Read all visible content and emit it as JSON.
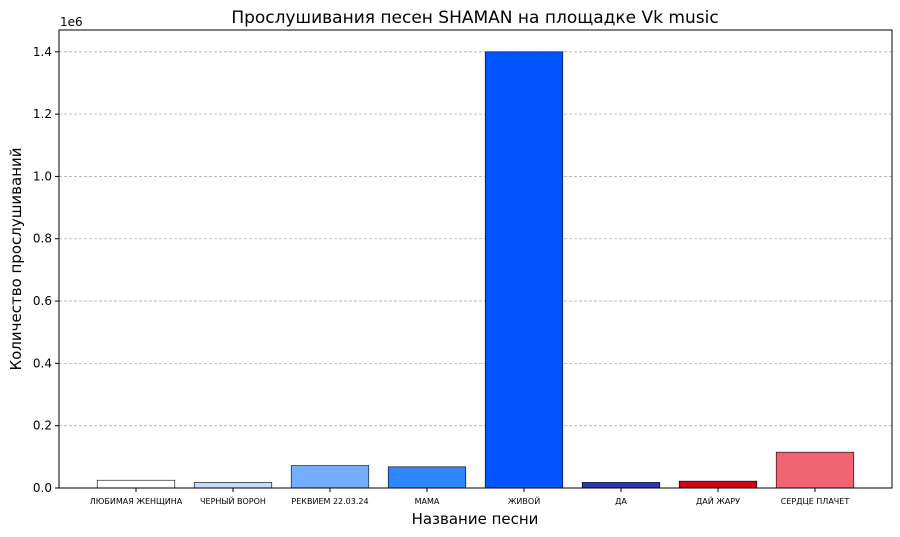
{
  "chart_data": {
    "type": "bar",
    "title": "Прослушивания песен SHAMAN на площадке Vk music",
    "xlabel": "Название песни",
    "ylabel": "Количество прослушиваний",
    "y_offset_label": "1e6",
    "ylim": [
      0,
      1470000
    ],
    "yticks": [
      0,
      200000,
      400000,
      600000,
      800000,
      1000000,
      1200000,
      1400000
    ],
    "ytick_labels": [
      "0.0",
      "0.2",
      "0.4",
      "0.6",
      "0.8",
      "1.0",
      "1.2",
      "1.4"
    ],
    "grid": true,
    "categories": [
      "ЛЮБИМАЯ ЖЕНЩИНА",
      "ЧЕРНЫЙ ВОРОН",
      "РЕКВИЕМ 22.03.24",
      "МАМА",
      "ЖИВОЙ",
      "ДА",
      "ДАЙ ЖАРУ",
      "СЕРДЦЕ ПЛАЧЕТ"
    ],
    "values": [
      25000,
      18000,
      72000,
      68000,
      1400000,
      18000,
      22000,
      115000
    ],
    "colors": [
      "#ffffff",
      "#c6dbff",
      "#73aeff",
      "#2e87ff",
      "#0055ff",
      "#2a35b8",
      "#d4001a",
      "#f06370"
    ]
  }
}
